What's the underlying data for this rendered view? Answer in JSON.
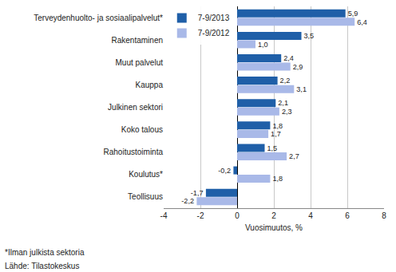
{
  "chart_data": {
    "type": "bar",
    "orientation": "horizontal",
    "categories": [
      "Terveydenhuolto- ja sosiaalipalvelut*",
      "Rakentaminen",
      "Muut palvelut",
      "Kauppa",
      "Julkinen sektori",
      "Koko talous",
      "Rahoitustoiminta",
      "Koulutus*",
      "Teollisuus"
    ],
    "series": [
      {
        "name": "7-9/2013",
        "color": "#1f5fa8",
        "values": [
          5.9,
          3.5,
          2.4,
          2.2,
          2.1,
          1.8,
          1.5,
          -0.2,
          -1.7
        ],
        "value_labels": [
          "5,9",
          "3,5",
          "2,4",
          "2,2",
          "2,1",
          "1,8",
          "1,5",
          "-0,2",
          "-1,7"
        ]
      },
      {
        "name": "7-9/2012",
        "color": "#a9b9e8",
        "values": [
          6.4,
          1.0,
          2.9,
          3.1,
          2.3,
          1.7,
          2.7,
          1.8,
          -2.2
        ],
        "value_labels": [
          "6,4",
          "1,0",
          "2,9",
          "3,1",
          "2,3",
          "1,7",
          "2,7",
          "1,8",
          "-2,2"
        ]
      }
    ],
    "xlim": [
      -4,
      8
    ],
    "xticks": [
      -4,
      -2,
      0,
      2,
      4,
      6,
      8
    ],
    "xlabel": "Vuosimuutos, %",
    "grid": true,
    "legend": "upper left",
    "data_labels": true,
    "annotations": [
      "*Ilman julkista sektoria",
      "Lähde: Tilastokeskus"
    ]
  }
}
